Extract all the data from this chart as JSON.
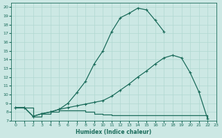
{
  "xlabel": "Humidex (Indice chaleur)",
  "bg_color": "#cce8e4",
  "line_color": "#1a6b5a",
  "grid_color": "#b0d8d0",
  "xlim": [
    -0.5,
    23
  ],
  "ylim": [
    7,
    20.5
  ],
  "xticks": [
    0,
    1,
    2,
    3,
    4,
    5,
    6,
    7,
    8,
    9,
    10,
    11,
    12,
    13,
    14,
    15,
    16,
    17,
    18,
    19,
    20,
    21,
    22,
    23
  ],
  "yticks": [
    7,
    8,
    9,
    10,
    11,
    12,
    13,
    14,
    15,
    16,
    17,
    18,
    19,
    20
  ],
  "line1_x": [
    0,
    1,
    2,
    3,
    4,
    5,
    6,
    7,
    8,
    9,
    10,
    11,
    12,
    13,
    14,
    15,
    16,
    17
  ],
  "line1_y": [
    8.5,
    8.5,
    7.5,
    7.8,
    8.0,
    8.3,
    9.0,
    10.2,
    11.5,
    13.5,
    15.0,
    17.2,
    18.8,
    19.3,
    19.9,
    19.7,
    18.5,
    17.2
  ],
  "line2_x": [
    0,
    1,
    2,
    3,
    4,
    5,
    6,
    7,
    8,
    9,
    10,
    11,
    12,
    13,
    14,
    15,
    16,
    17,
    18,
    19,
    20,
    21,
    22
  ],
  "line2_y": [
    8.5,
    8.5,
    7.5,
    7.8,
    8.0,
    8.3,
    8.5,
    8.7,
    8.9,
    9.1,
    9.3,
    9.8,
    10.5,
    11.2,
    12.0,
    12.7,
    13.5,
    14.2,
    14.5,
    14.2,
    12.5,
    10.3,
    7.2
  ],
  "line3_x": [
    0,
    1,
    2,
    3,
    4,
    5,
    6,
    7,
    8,
    9,
    10,
    11,
    12,
    13,
    14,
    15,
    16,
    17,
    18,
    19,
    20,
    21,
    22
  ],
  "line3_y": [
    8.5,
    8.5,
    7.5,
    7.8,
    8.0,
    8.2,
    8.2,
    8.2,
    8.0,
    7.8,
    7.7,
    7.6,
    7.6,
    7.6,
    7.6,
    7.6,
    7.6,
    7.6,
    7.6,
    7.6,
    7.6,
    7.6,
    7.2
  ]
}
